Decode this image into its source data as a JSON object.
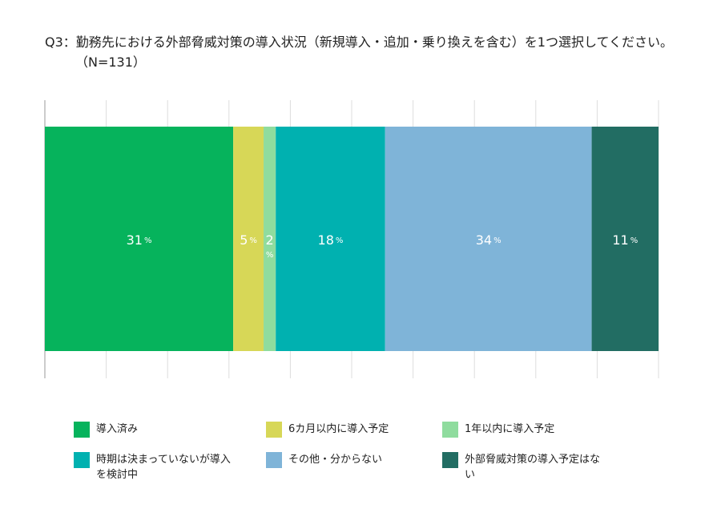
{
  "chart_data": {
    "type": "stacked-bar-100",
    "title": "Q3：勤務先における外部脅威対策の導入状況（新規導入・追加・乗り換えを含む）を1つ選択してください。（N=131）",
    "xlim": [
      0,
      101
    ],
    "series": [
      {
        "name": "導入済み",
        "color": "#06b35c",
        "values": [
          31
        ],
        "value_labels": [
          "31%"
        ]
      },
      {
        "name": "6カ月以内に導入予定",
        "color": "#d7d757",
        "values": [
          5
        ],
        "value_labels": [
          "5%"
        ]
      },
      {
        "name": "1年以内に導入予定",
        "color": "#8fdc9e",
        "values": [
          2
        ],
        "value_labels": [
          "2%"
        ]
      },
      {
        "name": "時期は決まっていないが導入を検討中",
        "color": "#00b1b0",
        "values": [
          18
        ],
        "value_labels": [
          "18%"
        ]
      },
      {
        "name": "その他・分からない",
        "color": "#7fb4d8",
        "values": [
          34
        ],
        "value_labels": [
          "34%"
        ]
      },
      {
        "name": "外部脅威対策の導入予定はない",
        "color": "#226d63",
        "values": [
          11
        ],
        "value_labels": [
          "11%"
        ]
      }
    ]
  }
}
